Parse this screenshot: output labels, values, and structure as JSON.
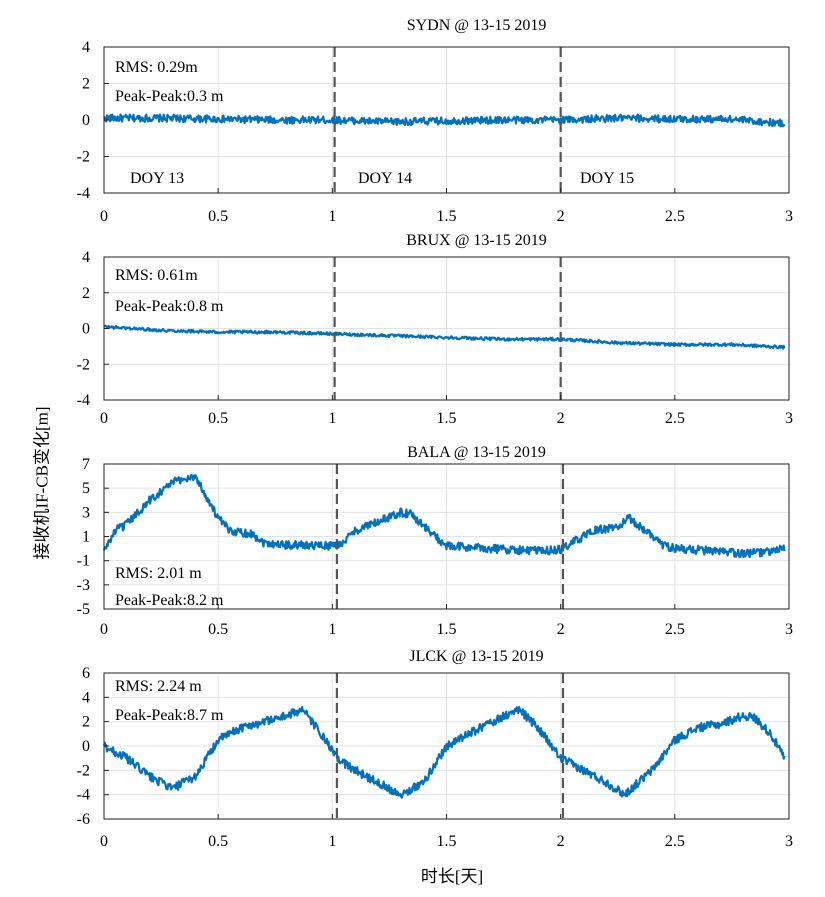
{
  "figure": {
    "xlabel": "时长[天]",
    "ylabel": "接收机IF-CB变化[m]"
  },
  "chart_data": [
    {
      "type": "line",
      "title": "SYDN @ 13-15 2019",
      "xlim": [
        0,
        3
      ],
      "ylim": [
        -4,
        4
      ],
      "xticks": [
        "0",
        "0.5",
        "1",
        "1.5",
        "2",
        "2.5",
        "3"
      ],
      "yticks": [
        "4",
        "2",
        "0",
        "-2",
        "-4"
      ],
      "grid": true,
      "day_dividers": [
        1.01,
        2.0
      ],
      "annotations": {
        "rms": "RMS: 0.29m",
        "peak": "Peak-Peak:0.3 m",
        "doy": [
          "DOY 13",
          "DOY 14",
          "DOY 15"
        ]
      },
      "series": [
        {
          "color": "#0072BD",
          "noise": 0.2,
          "x": [
            0,
            0.25,
            0.5,
            0.75,
            1.0,
            1.25,
            1.5,
            1.75,
            2.0,
            2.25,
            2.5,
            2.75,
            2.98
          ],
          "y": [
            0.1,
            0.1,
            0.05,
            0.0,
            0.0,
            -0.1,
            -0.05,
            0.0,
            0.0,
            0.1,
            0.05,
            0.05,
            -0.2
          ]
        }
      ]
    },
    {
      "type": "line",
      "title": "BRUX @ 13-15 2019",
      "xlim": [
        0,
        3
      ],
      "ylim": [
        -4,
        4
      ],
      "xticks": [
        "0",
        "0.5",
        "1",
        "1.5",
        "2",
        "2.5",
        "3"
      ],
      "yticks": [
        "4",
        "2",
        "0",
        "-2",
        "-4"
      ],
      "grid": true,
      "day_dividers": [
        1.01,
        2.0
      ],
      "annotations": {
        "rms": "RMS: 0.61m",
        "peak": "Peak-Peak:0.8 m"
      },
      "series": [
        {
          "color": "#0072BD",
          "noise": 0.08,
          "x": [
            0,
            0.25,
            0.5,
            0.75,
            1.0,
            1.25,
            1.5,
            1.75,
            2.0,
            2.25,
            2.5,
            2.75,
            2.98
          ],
          "y": [
            0.1,
            -0.1,
            -0.2,
            -0.2,
            -0.3,
            -0.4,
            -0.5,
            -0.6,
            -0.6,
            -0.8,
            -0.9,
            -0.9,
            -1.05
          ]
        }
      ]
    },
    {
      "type": "line",
      "title": "BALA @ 13-15 2019",
      "xlim": [
        0,
        3
      ],
      "ylim": [
        -5,
        7
      ],
      "xticks": [
        "0",
        "0.5",
        "1",
        "1.5",
        "2",
        "2.5",
        "3"
      ],
      "yticks": [
        "7",
        "5",
        "3",
        "1",
        "-1",
        "-3",
        "-5"
      ],
      "grid": true,
      "day_dividers": [
        1.02,
        2.01
      ],
      "annotations": {
        "rms": "RMS: 2.01 m",
        "peak": "Peak-Peak:8.2 m"
      },
      "series": [
        {
          "color": "#0072BD",
          "noise": 0.35,
          "x": [
            0,
            0.05,
            0.1,
            0.2,
            0.3,
            0.4,
            0.5,
            0.55,
            0.65,
            0.7,
            0.8,
            0.9,
            1.0,
            1.05,
            1.1,
            1.2,
            1.3,
            1.35,
            1.45,
            1.5,
            1.6,
            1.7,
            1.8,
            1.9,
            2.0,
            2.05,
            2.15,
            2.25,
            2.3,
            2.35,
            2.45,
            2.5,
            2.6,
            2.7,
            2.8,
            2.9,
            2.98
          ],
          "y": [
            -0.2,
            1.5,
            2.0,
            4.0,
            5.5,
            6.0,
            2.5,
            1.5,
            1.2,
            0.5,
            0.3,
            0.3,
            0.2,
            0.5,
            1.5,
            2.2,
            3.0,
            2.8,
            1.0,
            0.2,
            0.1,
            0.0,
            -0.1,
            -0.2,
            -0.1,
            0.5,
            1.5,
            1.8,
            2.5,
            1.8,
            0.3,
            0.0,
            -0.1,
            -0.3,
            -0.4,
            -0.3,
            0.0
          ]
        }
      ]
    },
    {
      "type": "line",
      "title": "JLCK @ 13-15 2019",
      "xlim": [
        0,
        3
      ],
      "ylim": [
        -6,
        6
      ],
      "xticks": [
        "0",
        "0.5",
        "1",
        "1.5",
        "2",
        "2.5",
        "3"
      ],
      "yticks": [
        "6",
        "4",
        "2",
        "0",
        "-2",
        "-4",
        "-6"
      ],
      "grid": true,
      "day_dividers": [
        1.02,
        2.01
      ],
      "annotations": {
        "rms": "RMS: 2.24 m",
        "peak": "Peak-Peak:8.7 m"
      },
      "series": [
        {
          "color": "#0072BD",
          "noise": 0.35,
          "x": [
            0,
            0.1,
            0.2,
            0.3,
            0.4,
            0.5,
            0.6,
            0.7,
            0.8,
            0.87,
            0.95,
            1.02,
            1.1,
            1.2,
            1.3,
            1.4,
            1.5,
            1.6,
            1.7,
            1.82,
            1.9,
            2.0,
            2.1,
            2.2,
            2.28,
            2.4,
            2.5,
            2.6,
            2.7,
            2.8,
            2.85,
            2.92,
            2.98
          ],
          "y": [
            0.0,
            -1.0,
            -2.5,
            -3.5,
            -2.5,
            0.5,
            1.5,
            2.0,
            2.5,
            3.0,
            1.0,
            -1.0,
            -2.0,
            -3.0,
            -4.0,
            -3.0,
            0.0,
            1.0,
            2.0,
            3.0,
            1.5,
            -1.0,
            -2.0,
            -3.0,
            -4.0,
            -2.0,
            0.5,
            1.5,
            1.8,
            2.5,
            2.3,
            1.0,
            -1.0
          ]
        }
      ]
    }
  ]
}
